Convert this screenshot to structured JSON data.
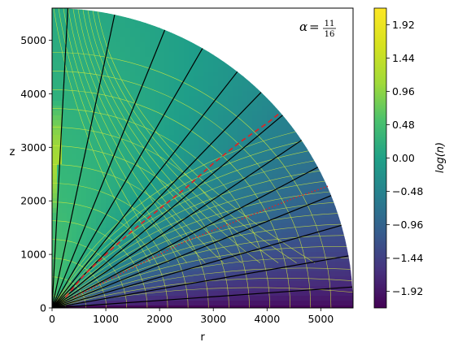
{
  "chart_data": {
    "type": "heatmap",
    "title": "",
    "xlabel": "r",
    "ylabel": "z",
    "xlim": [
      0,
      5600
    ],
    "ylim": [
      0,
      5600
    ],
    "x_ticks": [
      "0",
      "1000",
      "2000",
      "3000",
      "4000",
      "5000"
    ],
    "y_ticks": [
      "0",
      "1000",
      "2000",
      "3000",
      "4000",
      "5000"
    ],
    "domain_shape": "quarter-disk",
    "domain_radius": 5600,
    "annotation": {
      "alpha_symbol": "α",
      "equals": "=",
      "numerator": "11",
      "denominator": "16",
      "position": "top-right"
    },
    "colorbar": {
      "label": "log(n)",
      "range": [
        -2.16,
        2.16
      ],
      "colormap": "viridis",
      "tick_values": [
        -1.92,
        -1.44,
        -0.96,
        -0.48,
        0.0,
        0.48,
        0.96,
        1.44,
        1.92
      ],
      "tick_labels": [
        "−1.92",
        "−1.44",
        "−0.96",
        "−0.48",
        "0.00",
        "0.48",
        "0.96",
        "1.44",
        "1.92"
      ]
    },
    "black_field_lines": {
      "color": "#000000",
      "angles_deg": [
        4,
        10,
        16,
        22,
        28,
        34,
        40,
        46,
        52,
        60,
        68,
        78,
        87
      ]
    },
    "red_dashed_curve": {
      "style": "dashed",
      "color": "#d62728",
      "points": [
        [
          250,
          200
        ],
        [
          600,
          620
        ],
        [
          1000,
          1000
        ],
        [
          1500,
          1450
        ],
        [
          2000,
          1850
        ],
        [
          2500,
          2250
        ],
        [
          3000,
          2700
        ],
        [
          3500,
          3100
        ],
        [
          4000,
          3450
        ],
        [
          4250,
          3650
        ]
      ]
    },
    "red_dotted_curve": {
      "style": "dotted",
      "color": "#d62728",
      "points": [
        [
          400,
          200
        ],
        [
          1000,
          500
        ],
        [
          1500,
          750
        ],
        [
          2000,
          1000
        ],
        [
          2500,
          1250
        ],
        [
          3000,
          1450
        ],
        [
          3500,
          1650
        ],
        [
          4000,
          1850
        ],
        [
          4500,
          2050
        ],
        [
          5150,
          2280
        ]
      ]
    },
    "yellow_contours": {
      "color": "#d4ec3a",
      "count_estimate": 30
    }
  },
  "colors": {
    "black_lines": "#000000",
    "red_curves": "#d62728",
    "contours": "#d4ec3a"
  }
}
